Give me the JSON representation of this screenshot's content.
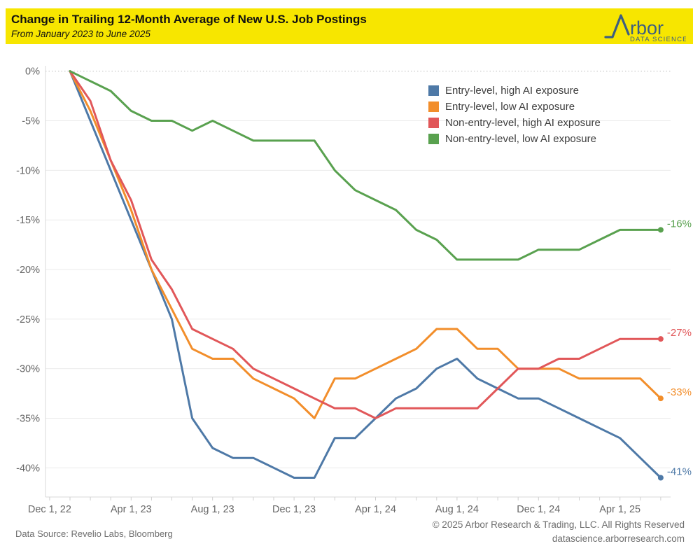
{
  "header": {
    "title": "Change in Trailing 12-Month Average of New U.S. Job Postings",
    "subtitle": "From January 2023 to June 2025",
    "logo": {
      "brand_text": "rbor",
      "tagline": "DATA SCIENCE",
      "color": "#3E5F80"
    }
  },
  "legend": {
    "items": [
      {
        "label": "Entry-level, high AI exposure",
        "color": "#4E79A7"
      },
      {
        "label": "Entry-level, low AI exposure",
        "color": "#F28E2B"
      },
      {
        "label": "Non-entry-level, high AI exposure",
        "color": "#E15759"
      },
      {
        "label": "Non-entry-level, low AI exposure",
        "color": "#59A14F"
      }
    ]
  },
  "chart_data": {
    "type": "line",
    "title": "Change in Trailing 12-Month Average of New U.S. Job Postings",
    "subtitle": "From January 2023 to June 2025",
    "x": [
      "Jan 2023",
      "Feb 2023",
      "Mar 2023",
      "Apr 2023",
      "May 2023",
      "Jun 2023",
      "Jul 2023",
      "Aug 2023",
      "Sep 2023",
      "Oct 2023",
      "Nov 2023",
      "Dec 2023",
      "Jan 2024",
      "Feb 2024",
      "Mar 2024",
      "Apr 2024",
      "May 2024",
      "Jun 2024",
      "Jul 2024",
      "Aug 2024",
      "Sep 2024",
      "Oct 2024",
      "Nov 2024",
      "Dec 2024",
      "Jan 2025",
      "Feb 2025",
      "Mar 2025",
      "Apr 2025",
      "May 2025",
      "Jun 2025"
    ],
    "x_tick_labels": [
      "Dec 1, 22",
      "Apr 1, 23",
      "Aug 1, 23",
      "Dec 1, 23",
      "Apr 1, 24",
      "Aug 1, 24",
      "Dec 1, 24",
      "Apr 1, 25"
    ],
    "y_tick_labels": [
      "0%",
      "-5%",
      "-10%",
      "-15%",
      "-20%",
      "-25%",
      "-30%",
      "-35%",
      "-40%"
    ],
    "ylim": [
      -43,
      1
    ],
    "unit": "percent",
    "grid": "horizontal",
    "legend_position": "top-right-inside",
    "series": [
      {
        "name": "Entry-level, high AI exposure",
        "color": "#4E79A7",
        "end_label": "-41%",
        "values": [
          0,
          -5,
          -10,
          -15,
          -20,
          -25,
          -35,
          -38,
          -39,
          -39,
          -40,
          -41,
          -41,
          -37,
          -37,
          -35,
          -33,
          -32,
          -30,
          -29,
          -31,
          -32,
          -33,
          -33,
          -34,
          -35,
          -36,
          -37,
          -39,
          -41
        ]
      },
      {
        "name": "Entry-level, low AI exposure",
        "color": "#F28E2B",
        "end_label": "-33%",
        "values": [
          0,
          -4,
          -9,
          -14,
          -20,
          -24,
          -28,
          -29,
          -29,
          -31,
          -32,
          -33,
          -35,
          -31,
          -31,
          -30,
          -29,
          -28,
          -26,
          -26,
          -28,
          -28,
          -30,
          -30,
          -30,
          -31,
          -31,
          -31,
          -31,
          -33
        ]
      },
      {
        "name": "Non-entry-level, high AI exposure",
        "color": "#E15759",
        "end_label": "-27%",
        "values": [
          0,
          -3,
          -9,
          -13,
          -19,
          -22,
          -26,
          -27,
          -28,
          -30,
          -31,
          -32,
          -33,
          -34,
          -34,
          -35,
          -34,
          -34,
          -34,
          -34,
          -34,
          -32,
          -30,
          -30,
          -29,
          -29,
          -28,
          -27,
          -27,
          -27
        ]
      },
      {
        "name": "Non-entry-level, low AI exposure",
        "color": "#59A14F",
        "end_label": "-16%",
        "values": [
          0,
          -1,
          -2,
          -4,
          -5,
          -5,
          -6,
          -5,
          -6,
          -7,
          -7,
          -7,
          -7,
          -10,
          -12,
          -13,
          -14,
          -16,
          -17,
          -19,
          -19,
          -19,
          -19,
          -18,
          -18,
          -18,
          -17,
          -16,
          -16,
          -16
        ]
      }
    ]
  },
  "footer": {
    "data_source": "Data Source: Revelio Labs, Bloomberg",
    "copyright": "© 2025 Arbor Research & Trading, LLC. All Rights Reserved",
    "website": "datascience.arborresearch.com"
  }
}
